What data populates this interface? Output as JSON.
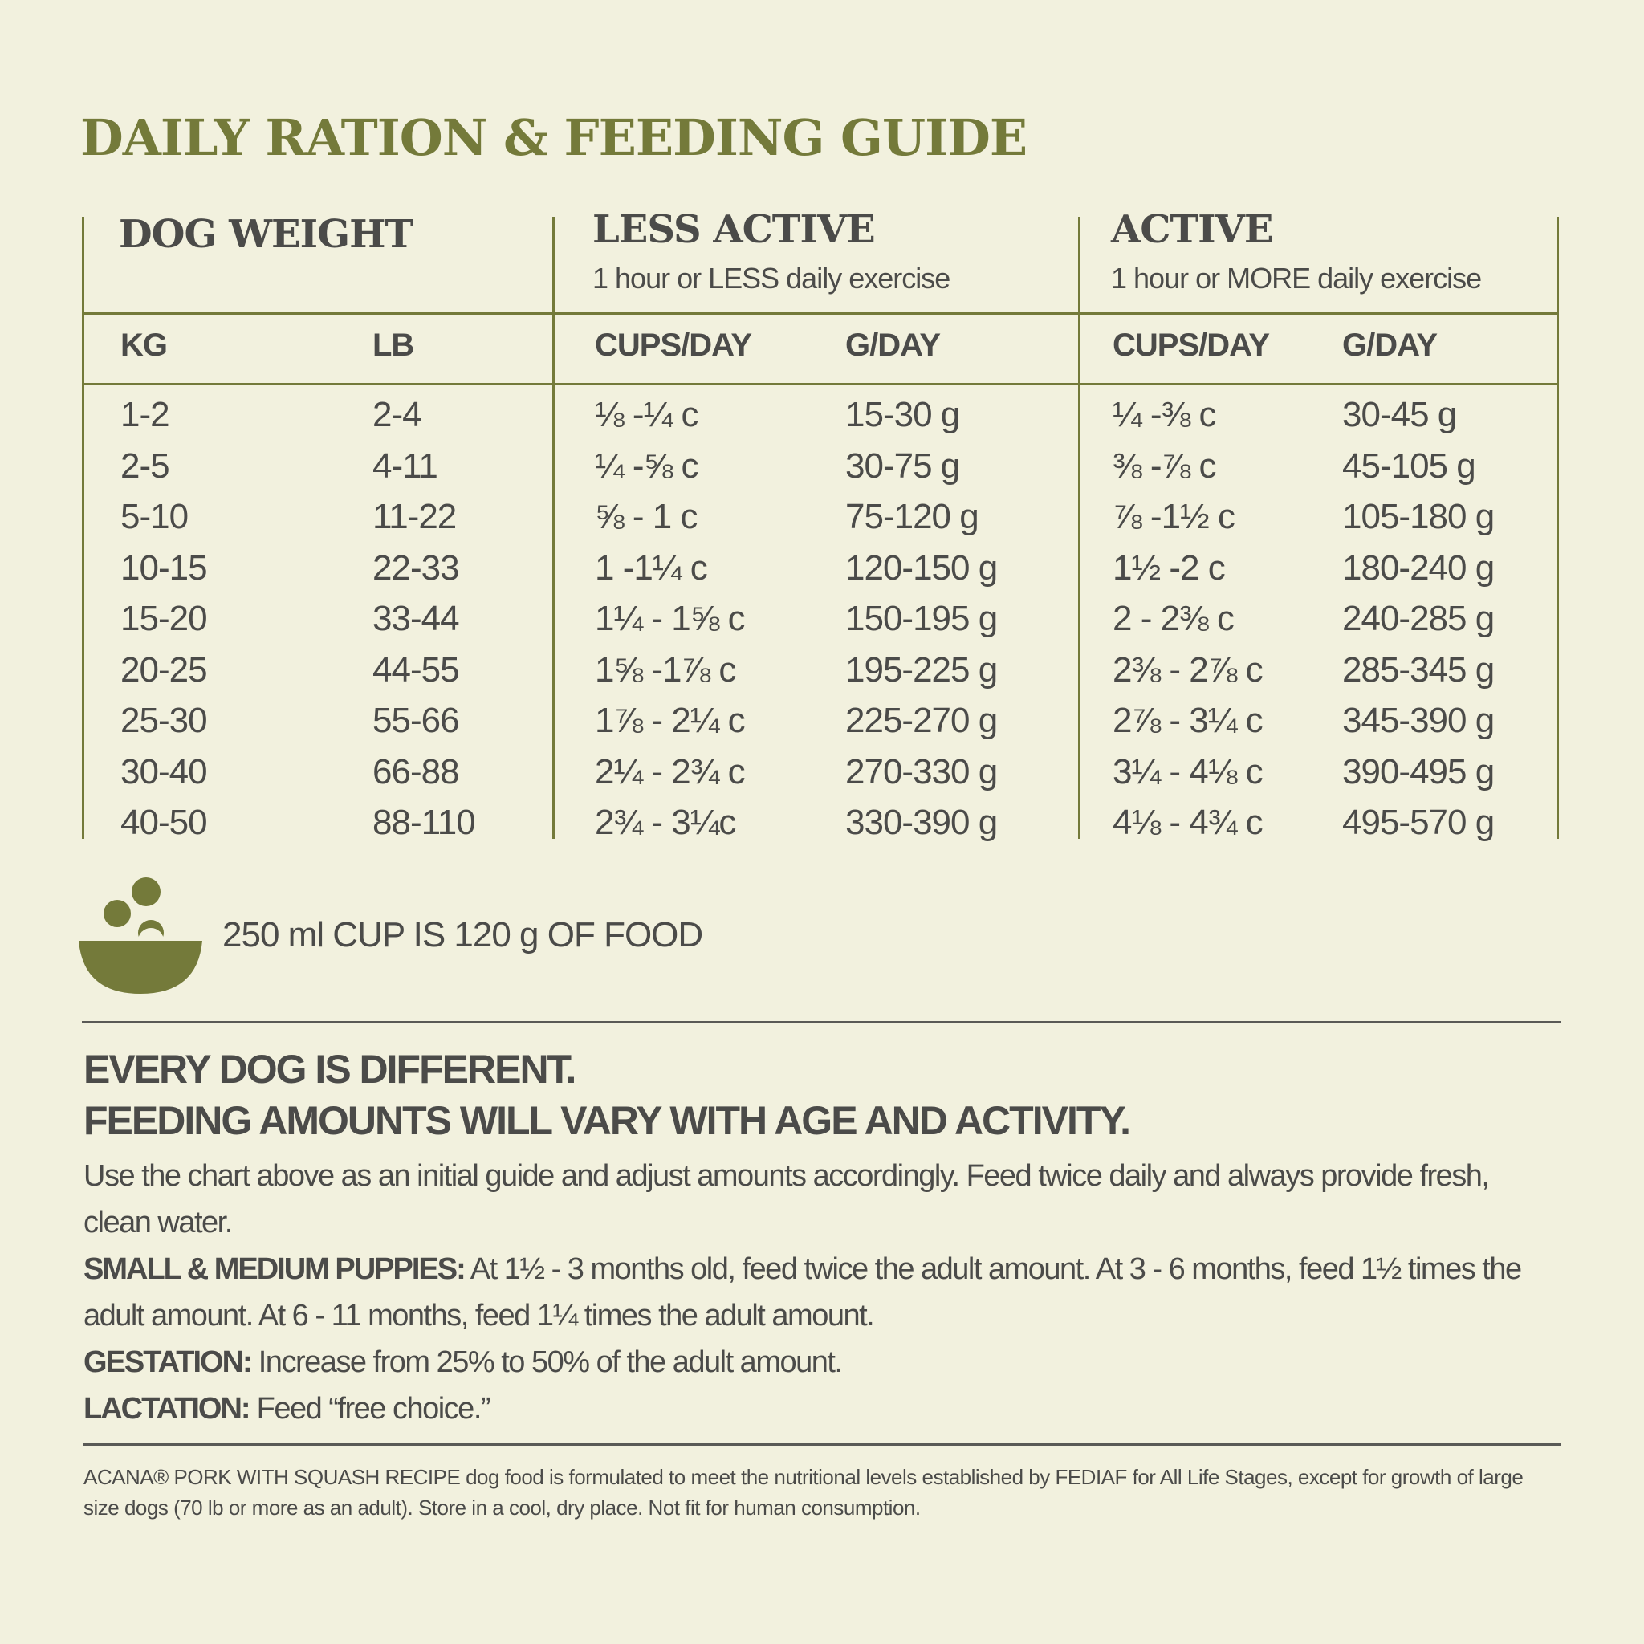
{
  "title": "DAILY RATION & FEEDING GUIDE",
  "table": {
    "groups": [
      {
        "title": "DOG WEIGHT"
      },
      {
        "title": "LESS ACTIVE",
        "subtitle": "1 hour or LESS daily exercise"
      },
      {
        "title": "ACTIVE",
        "subtitle": "1 hour or MORE daily exercise"
      }
    ],
    "columns": [
      "KG",
      "LB",
      "CUPS/DAY",
      "G/DAY",
      "CUPS/DAY",
      "G/DAY"
    ],
    "rows": [
      [
        "1-2",
        "2-4",
        "⅛ -¼ c",
        "15-30 g",
        "¼ -⅜ c",
        "30-45 g"
      ],
      [
        "2-5",
        "4-11",
        "¼ -⅝ c",
        "30-75 g",
        "⅜ -⅞ c",
        "45-105 g"
      ],
      [
        "5-10",
        "11-22",
        "⅝ - 1 c",
        "75-120 g",
        "⅞ -1½ c",
        "105-180 g"
      ],
      [
        "10-15",
        "22-33",
        "1 -1¼ c",
        "120-150 g",
        "1½ -2 c",
        "180-240 g"
      ],
      [
        "15-20",
        "33-44",
        "1¼ - 1⅝ c",
        "150-195 g",
        "2 - 2⅜ c",
        "240-285 g"
      ],
      [
        "20-25",
        "44-55",
        "1⅝ -1⅞ c",
        "195-225 g",
        "2⅜ - 2⅞ c",
        "285-345 g"
      ],
      [
        "25-30",
        "55-66",
        "1⅞ - 2¼ c",
        "225-270 g",
        "2⅞ - 3¼ c",
        "345-390 g"
      ],
      [
        "30-40",
        "66-88",
        "2¼ - 2¾ c",
        "270-330 g",
        "3¼ - 4⅛ c",
        "390-495 g"
      ],
      [
        "40-50",
        "88-110",
        "2¾ - 3¼c",
        "330-390 g",
        "4⅛ - 4¾ c",
        "495-570 g"
      ]
    ]
  },
  "cup_note": "250 ml CUP IS 120 g OF FOOD",
  "heading": [
    "EVERY DOG IS DIFFERENT.",
    "FEEDING AMOUNTS WILL VARY WITH AGE AND ACTIVITY."
  ],
  "paragraphs": [
    {
      "text": "Use the chart above as an initial guide and adjust amounts accordingly. Feed twice daily and always provide fresh, clean water."
    },
    {
      "label": "SMALL & MEDIUM PUPPIES:",
      "text": "At 1½ - 3 months old, feed twice the adult amount. At 3 - 6 months, feed 1½ times the adult amount. At 6 - 11 months, feed 1¼ times the adult amount."
    },
    {
      "label": "GESTATION:",
      "text": "Increase from 25% to 50% of the adult amount."
    },
    {
      "label": "LACTATION:",
      "text": "Feed “free choice.”"
    }
  ],
  "footer": "ACANA® PORK WITH SQUASH RECIPE dog food is formulated to meet the nutritional levels established by FEDIAF for All Life Stages, except for growth of large size dogs (70 lb or more as an adult). Store in a cool, dry place. Not fit for human consumption."
}
